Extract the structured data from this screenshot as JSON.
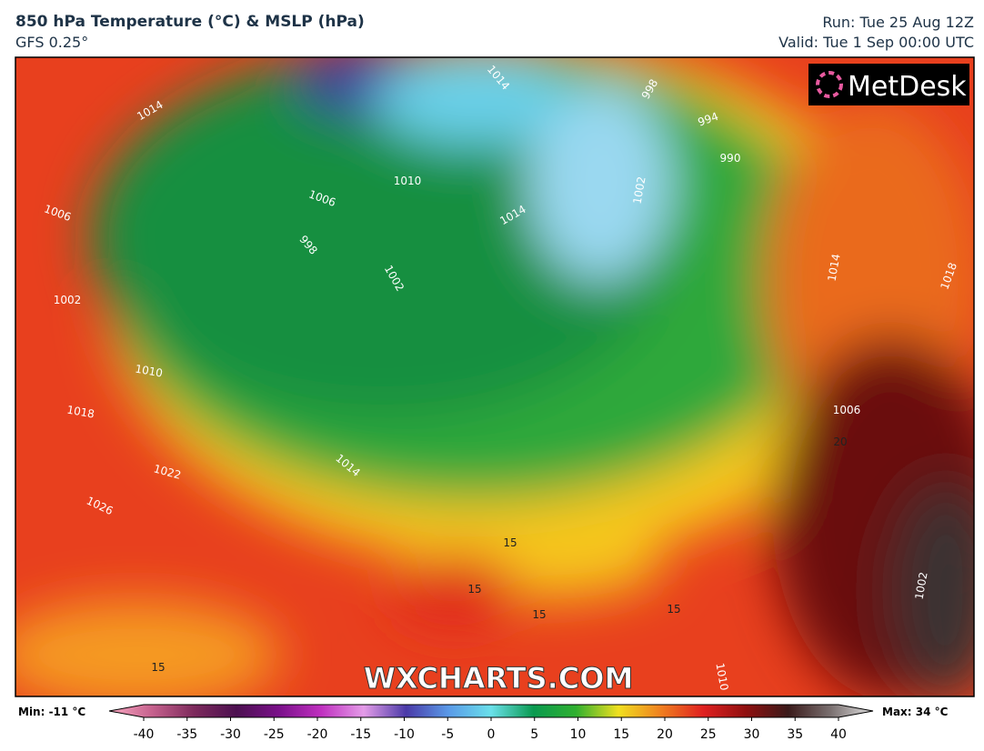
{
  "header": {
    "title": "850 hPa Temperature (°C) & MSLP (hPa)",
    "model": "GFS 0.25°",
    "run": "Run: Tue 25 Aug 12Z",
    "valid": "Valid: Tue 1 Sep 00:00 UTC"
  },
  "map": {
    "logo": "MetDesk",
    "watermark": "WXCHARTS.COM",
    "labels": [
      "1014",
      "1010",
      "1006",
      "998",
      "1002",
      "1006",
      "1002",
      "1010",
      "1018",
      "1022",
      "1026",
      "1014",
      "1014",
      "1014",
      "1002",
      "998",
      "994",
      "990",
      "1014",
      "1018",
      "1006",
      "1010",
      "1002",
      "15",
      "15",
      "15",
      "15",
      "15",
      "20"
    ]
  },
  "colorbar": {
    "min_label": "Min: -11 °C",
    "max_label": "Max: 34 °C",
    "range": [
      -40,
      40
    ],
    "ticks": [
      -40,
      -35,
      -30,
      -25,
      -20,
      -15,
      -10,
      -5,
      0,
      5,
      10,
      15,
      20,
      25,
      30,
      35,
      40
    ],
    "colors": [
      "#f7a8c0",
      "#c7628e",
      "#7d2a5c",
      "#4c1050",
      "#7a108a",
      "#c030c0",
      "#e49ce8",
      "#4a3aa8",
      "#5a9ae8",
      "#6ae0ea",
      "#0a9a50",
      "#30b030",
      "#f0e020",
      "#f08020",
      "#e02020",
      "#901010",
      "#3a1a1a",
      "#7a7070",
      "#e0e0e0"
    ]
  }
}
